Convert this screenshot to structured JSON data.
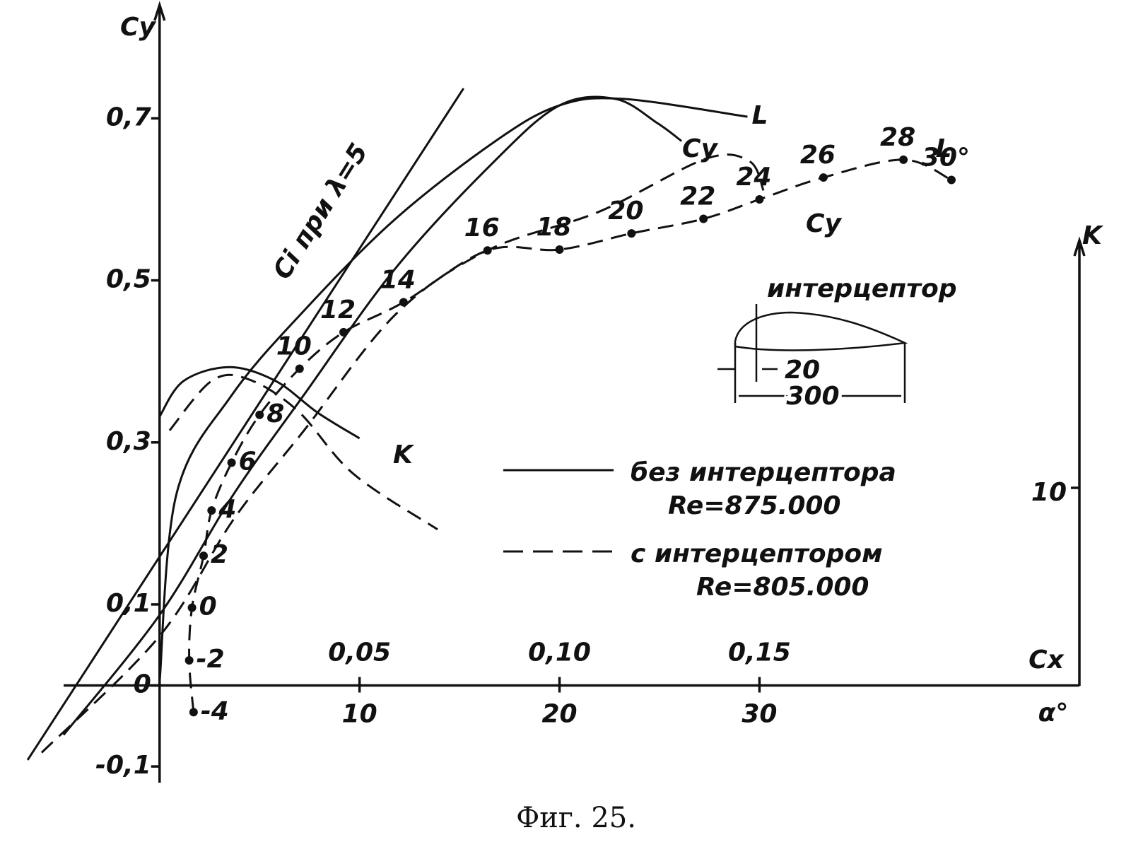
{
  "chart_data": {
    "type": "line",
    "caption": "Фиг. 25.",
    "y_label": "Cy",
    "x_label": "Cx",
    "x2_label": "α°",
    "y2_label": "K",
    "xlim": [
      -0.024,
      0.23
    ],
    "xticks": [
      {
        "value": 0.05,
        "label": "0,05"
      },
      {
        "value": 0.1,
        "label": "0,10"
      },
      {
        "value": 0.15,
        "label": "0,15"
      }
    ],
    "x2lim": [
      -4.8,
      46
    ],
    "x2ticks": [
      10,
      20,
      30
    ],
    "ylim": [
      -0.12,
      0.84
    ],
    "yticks": [
      {
        "value": -0.1,
        "label": "-0,1"
      },
      0,
      {
        "value": 0.1,
        "label": "0,1"
      },
      {
        "value": 0.3,
        "label": "0,3"
      },
      {
        "value": 0.5,
        "label": "0,5"
      },
      {
        "value": 0.7,
        "label": "0,7"
      }
    ],
    "y2lim": [
      0,
      22.5
    ],
    "y2ticks": [
      10
    ],
    "series": [
      {
        "name": "Ci при λ=5",
        "x_axis": "x2",
        "axis": "y",
        "dashed": false,
        "color": "#111",
        "x": [
          -6.6,
          15.2
        ],
        "values": [
          -0.092,
          0.737
        ]
      },
      {
        "name": "Cy",
        "x_axis": "x2",
        "axis": "y",
        "dashed": false,
        "color": "#111",
        "x": [
          -4.8,
          0,
          3.7,
          7.2,
          11.8,
          16.7,
          20.0,
          22.8,
          24.9,
          26.1
        ],
        "values": [
          -0.061,
          0.087,
          0.236,
          0.358,
          0.515,
          0.646,
          0.716,
          0.724,
          0.694,
          0.672
        ]
      },
      {
        "name": "L",
        "x_axis": "x",
        "axis": "y",
        "dashed": false,
        "color": "#111",
        "x": [
          0,
          0.0042,
          0.018,
          0.036,
          0.059,
          0.084,
          0.1,
          0.116,
          0.147
        ],
        "values": [
          0.004,
          0.236,
          0.358,
          0.462,
          0.576,
          0.672,
          0.716,
          0.724,
          0.702
        ]
      },
      {
        "name": "Cy",
        "x_axis": "x2",
        "axis": "y",
        "dashed": true,
        "color": "#111",
        "x": [
          -5.9,
          0,
          3.7,
          7.2,
          11.8,
          16.4,
          22.0,
          27.3,
          29.5,
          30.2
        ],
        "values": [
          -0.083,
          0.061,
          0.205,
          0.314,
          0.458,
          0.537,
          0.585,
          0.65,
          0.647,
          0.611
        ]
      },
      {
        "name": "L",
        "x_axis": "x",
        "axis": "y",
        "dashed": true,
        "markers": true,
        "color": "#111",
        "x": [
          0.0085,
          0.0074,
          0.0081,
          0.011,
          0.013,
          0.018,
          0.025,
          0.035,
          0.046,
          0.061,
          0.082,
          0.1,
          0.118,
          0.136,
          0.15,
          0.166,
          0.186,
          0.198
        ],
        "values": [
          -0.033,
          0.031,
          0.096,
          0.16,
          0.216,
          0.275,
          0.334,
          0.391,
          0.436,
          0.473,
          0.537,
          0.538,
          0.558,
          0.576,
          0.6,
          0.627,
          0.649,
          0.624
        ],
        "point_labels": [
          "-4",
          "-2",
          "0",
          "2",
          "4",
          "6",
          "8",
          "10",
          "12",
          "14",
          "16",
          "18",
          "20",
          "22",
          "24",
          "26",
          "28",
          "30°"
        ]
      },
      {
        "name": "K",
        "x_axis": "x2",
        "axis": "y2",
        "dashed": false,
        "color": "#111",
        "x": [
          0,
          1.2,
          3.5,
          5.8,
          7.9,
          10.0
        ],
        "values": [
          13.6,
          15.4,
          16.1,
          15.4,
          13.8,
          12.5
        ]
      },
      {
        "x_axis": "x2",
        "axis": "y2",
        "dashed": true,
        "color": "#111",
        "x": [
          0.5,
          2.6,
          4.4,
          6.9,
          9.7,
          13.9
        ],
        "values": [
          12.9,
          15.4,
          15.5,
          13.9,
          10.7,
          7.9
        ]
      }
    ],
    "legend": [
      {
        "text": "без интерцептора",
        "re": "Re=875.000",
        "dashed": false
      },
      {
        "text": "с интерцептором",
        "re": "Re=805.000",
        "dashed": true
      }
    ],
    "inset": {
      "label": "интерцептор",
      "dim_small": "20",
      "dim_large": "300"
    }
  }
}
